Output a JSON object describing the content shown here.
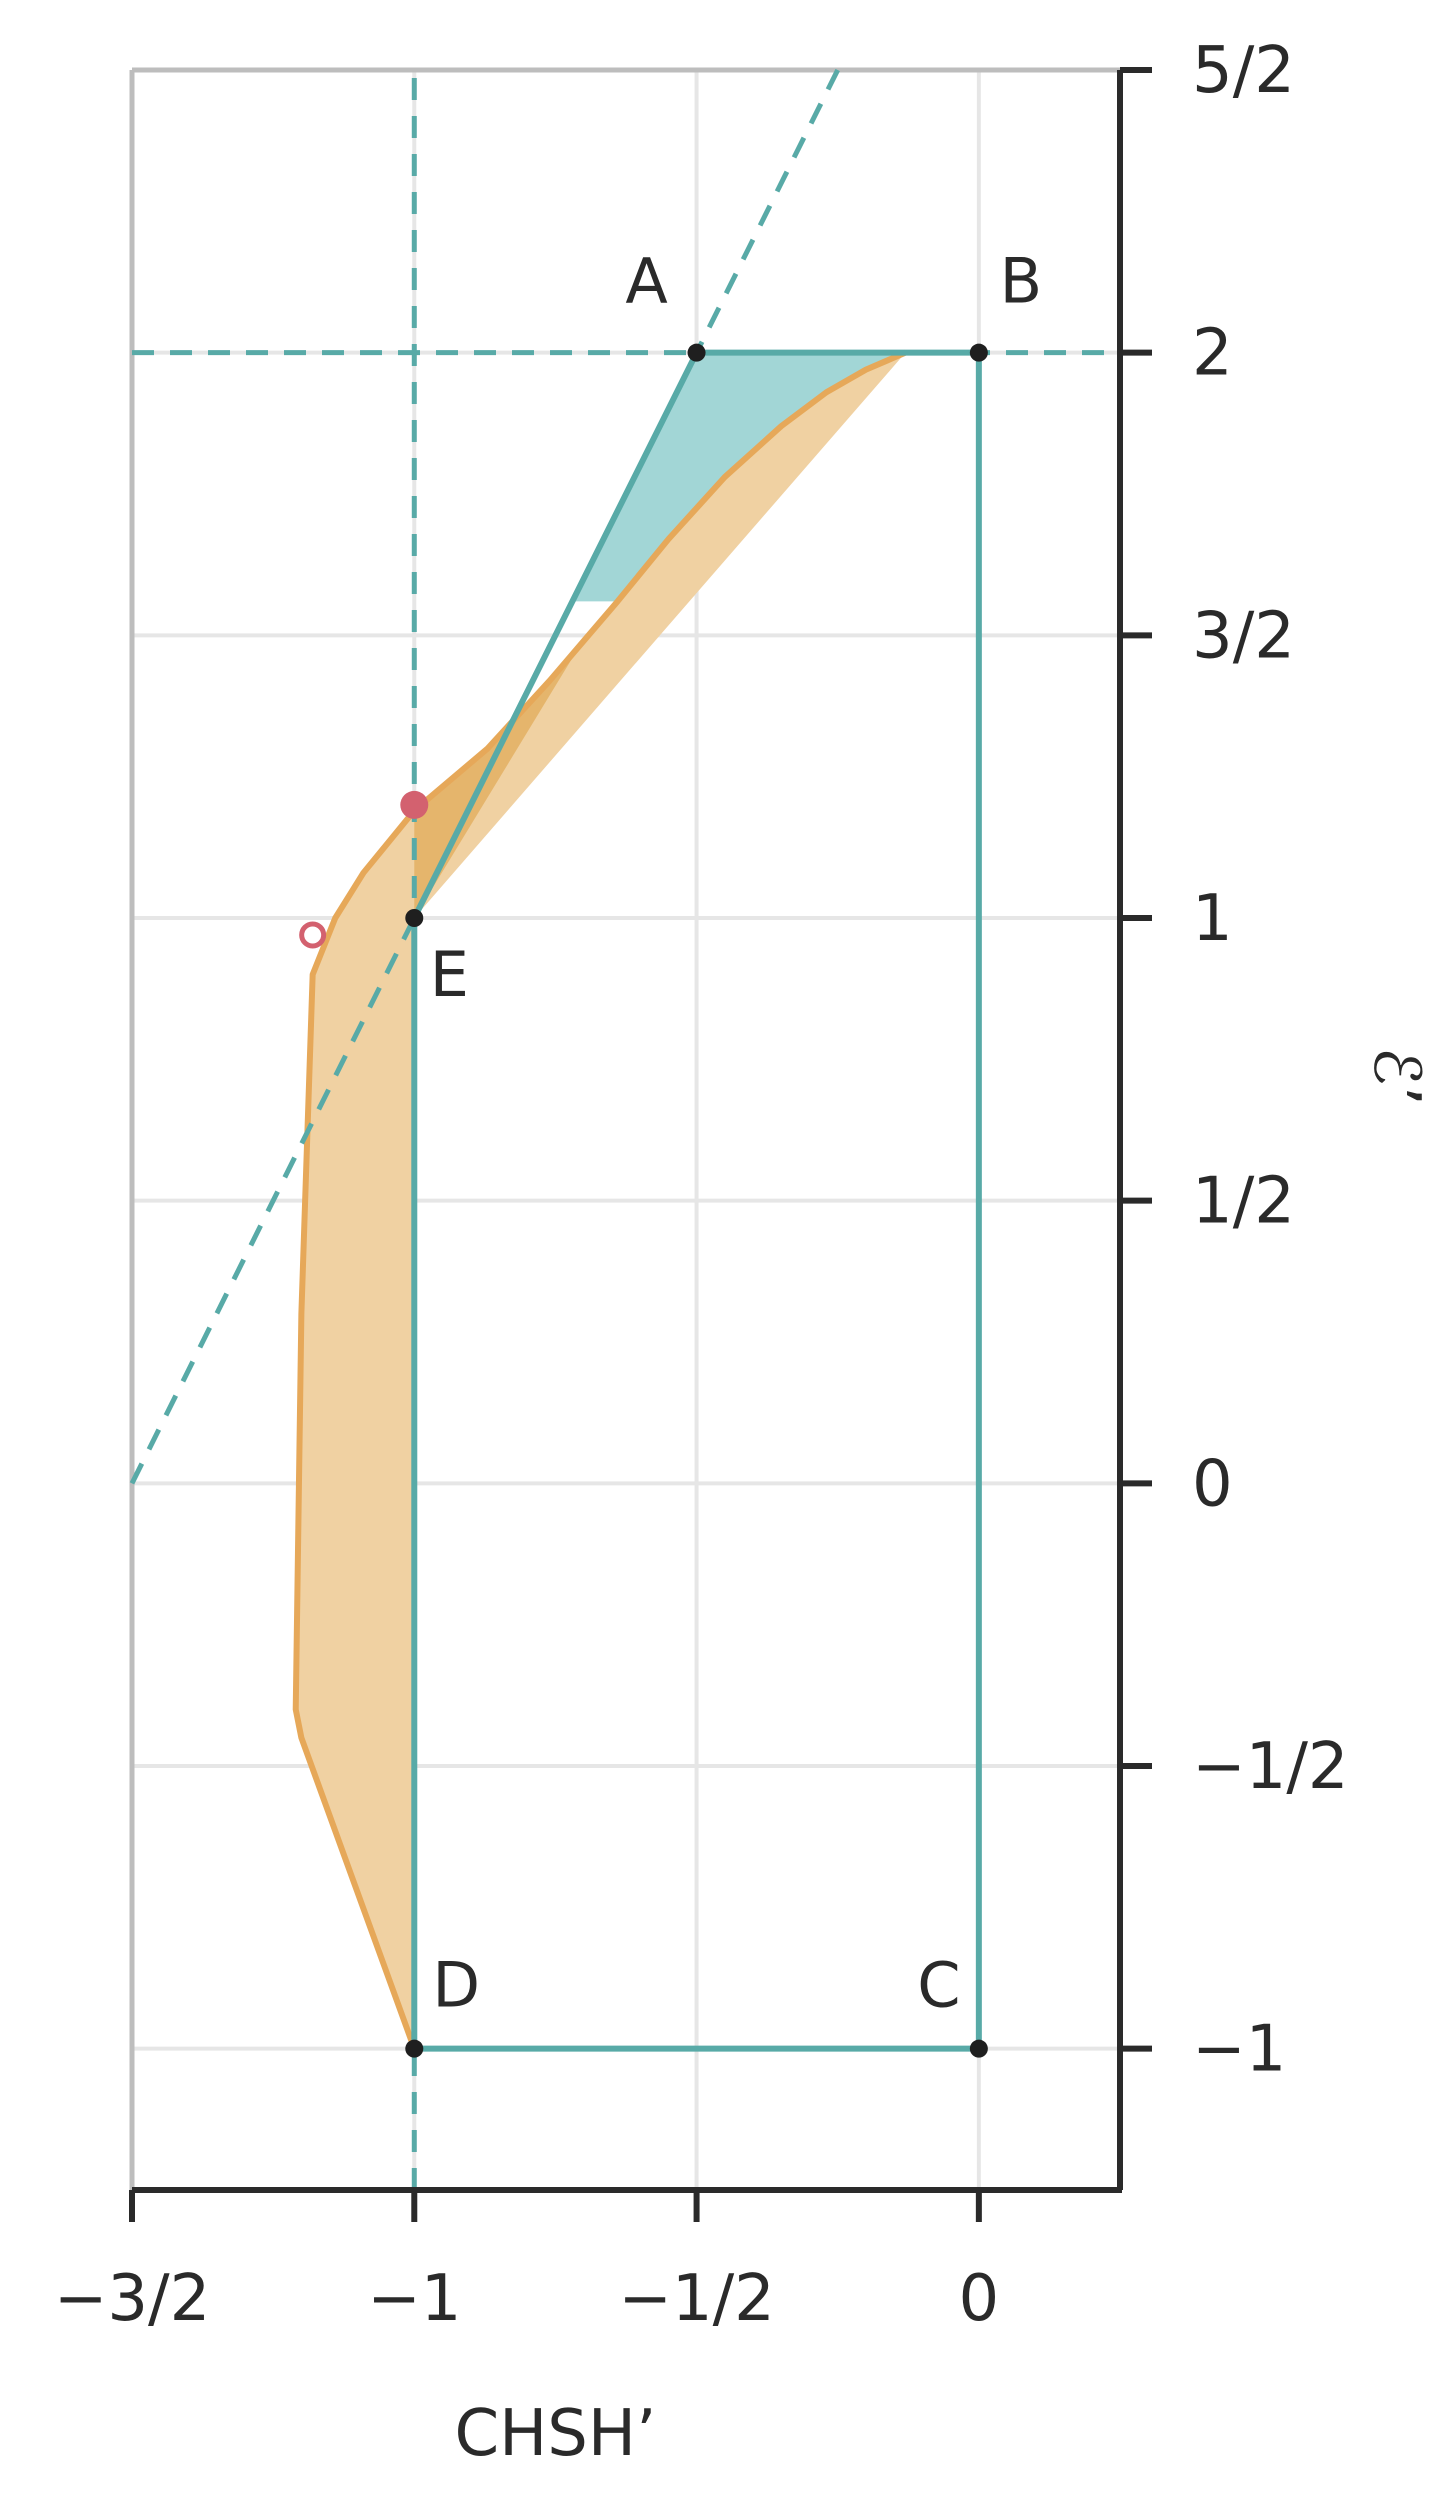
{
  "chart_data": {
    "type": "line",
    "xlabel": "CHSH’",
    "ylabel": "ℰ’",
    "xlim": [
      -1.5,
      0.25
    ],
    "ylim": [
      -1.25,
      2.5
    ],
    "x_ticks": [
      {
        "value": -1.5,
        "label": "−3/2"
      },
      {
        "value": -1,
        "label": "−1"
      },
      {
        "value": -0.5,
        "label": "−1/2"
      },
      {
        "value": 0,
        "label": "0"
      }
    ],
    "y_ticks": [
      {
        "value": 2.5,
        "label": "5/2"
      },
      {
        "value": 2,
        "label": "2"
      },
      {
        "value": 1.5,
        "label": "3/2"
      },
      {
        "value": 1,
        "label": "1"
      },
      {
        "value": 0.5,
        "label": "1/2"
      },
      {
        "value": 0,
        "label": "0"
      },
      {
        "value": -0.5,
        "label": "−1/2"
      },
      {
        "value": -1,
        "label": "−1"
      }
    ],
    "grid": true,
    "points": [
      {
        "name": "A",
        "x": -0.5,
        "y": 2
      },
      {
        "name": "B",
        "x": 0,
        "y": 2
      },
      {
        "name": "C",
        "x": 0,
        "y": -1
      },
      {
        "name": "D",
        "x": -1,
        "y": -1
      },
      {
        "name": "E",
        "x": -1,
        "y": 1
      }
    ],
    "polygon": [
      "A",
      "B",
      "C",
      "D",
      "E"
    ],
    "dashed_lines": [
      {
        "name": "horizontal",
        "x": [
          -1.5,
          0.25
        ],
        "y": [
          2,
          2
        ]
      },
      {
        "name": "vertical",
        "x": [
          -1,
          -1
        ],
        "y": [
          -1.25,
          2.5
        ]
      },
      {
        "name": "diagonal",
        "x": [
          -1.5,
          -0.25
        ],
        "y": [
          0,
          2.5
        ]
      }
    ],
    "orange_region": {
      "x": [
        -1,
        -1.2,
        -1.21,
        -1.2,
        -1.18,
        -1.14,
        -1.09,
        -1.0,
        -0.87,
        -0.76,
        -0.64,
        -0.55,
        -0.45,
        -0.35,
        -0.27,
        -0.2,
        -0.13
      ],
      "y": [
        -1,
        -0.45,
        -0.4,
        0.3,
        0.9,
        1.0,
        1.08,
        1.19,
        1.3,
        1.42,
        1.56,
        1.67,
        1.78,
        1.87,
        1.93,
        1.97,
        2.0
      ]
    },
    "teal_region": {
      "x": [
        -0.5,
        -0.13,
        -0.2,
        -0.27,
        -0.35,
        -0.45,
        -0.55,
        -0.64,
        -0.72
      ],
      "y": [
        2,
        2,
        1.97,
        1.93,
        1.87,
        1.78,
        1.67,
        1.56,
        1.56
      ]
    },
    "markers": [
      {
        "name": "filled",
        "x": -1,
        "y": 1.2,
        "style": "filled"
      },
      {
        "name": "open",
        "x": -1.18,
        "y": 0.97,
        "style": "open"
      }
    ],
    "colors": {
      "teal": "#58aaa7",
      "teal_fill": "#a2d6d6",
      "orange": "#e6a859",
      "orange_fill": "#f0d1a2",
      "orange_dark_fill": "#e5b56c",
      "marker": "#d3616f",
      "grid": "#e6e6e6",
      "frame": "#bdbdbd",
      "axis": "#2a2a2a"
    }
  }
}
